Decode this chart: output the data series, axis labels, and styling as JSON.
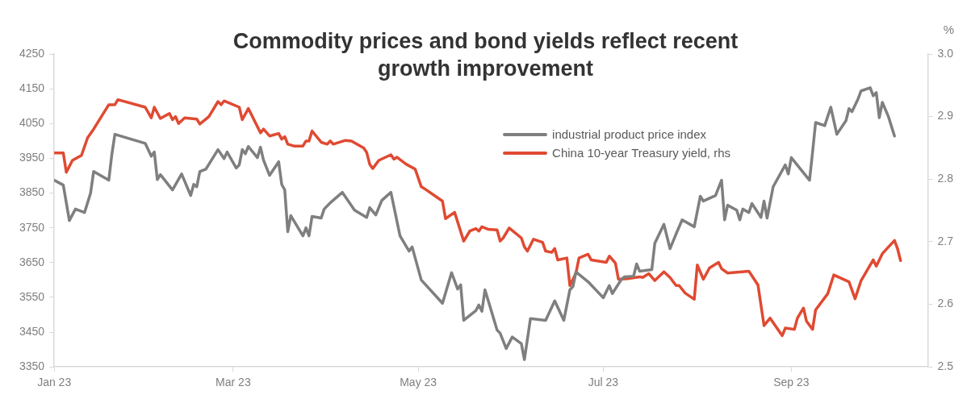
{
  "chart_data": {
    "type": "line",
    "title": "Commodity prices and bond yields reflect recent growth improvement",
    "y2label": "%",
    "xlim": [
      "2023-01-01",
      "2023-10-16"
    ],
    "xticks": [
      {
        "value": "2023-01-01",
        "label": "Jan 23"
      },
      {
        "value": "2023-03-01",
        "label": "Mar 23"
      },
      {
        "value": "2023-05-01",
        "label": "May 23"
      },
      {
        "value": "2023-07-01",
        "label": "Jul 23"
      },
      {
        "value": "2023-09-01",
        "label": "Sep 23"
      }
    ],
    "ylim": [
      3350,
      4250
    ],
    "yticks": [
      3350,
      3450,
      3550,
      3650,
      3750,
      3850,
      3950,
      4050,
      4150,
      4250
    ],
    "y2lim": [
      2.5,
      3.0
    ],
    "y2ticks": [
      {
        "value": 2.5,
        "label": "2.5"
      },
      {
        "value": 2.6,
        "label": "2.6"
      },
      {
        "value": 2.7,
        "label": "2.7"
      },
      {
        "value": 2.8,
        "label": "2.8"
      },
      {
        "value": 2.9,
        "label": "2.9"
      },
      {
        "value": 3.0,
        "label": "3.0"
      }
    ],
    "grid": false,
    "legend": "top right",
    "series": [
      {
        "name": "industrial product price index",
        "color": "#7f7f7f",
        "x": [
          "2023-01-01",
          "2023-01-04",
          "2023-01-06",
          "2023-01-08",
          "2023-01-11",
          "2023-01-13",
          "2023-01-14",
          "2023-01-19",
          "2023-01-20",
          "2023-01-21",
          "2023-01-31",
          "2023-02-02",
          "2023-02-03",
          "2023-02-04",
          "2023-02-05",
          "2023-02-09",
          "2023-02-12",
          "2023-02-15",
          "2023-02-16",
          "2023-02-17",
          "2023-02-18",
          "2023-02-20",
          "2023-02-24",
          "2023-02-26",
          "2023-02-27",
          "2023-03-02",
          "2023-03-03",
          "2023-03-04",
          "2023-03-05",
          "2023-03-06",
          "2023-03-09",
          "2023-03-10",
          "2023-03-11",
          "2023-03-13",
          "2023-03-16",
          "2023-03-17",
          "2023-03-18",
          "2023-03-19",
          "2023-03-20",
          "2023-03-24",
          "2023-03-25",
          "2023-03-26",
          "2023-03-27",
          "2023-03-30",
          "2023-03-31",
          "2023-04-02",
          "2023-04-06",
          "2023-04-10",
          "2023-04-14",
          "2023-04-15",
          "2023-04-17",
          "2023-04-19",
          "2023-04-22",
          "2023-04-25",
          "2023-04-28",
          "2023-04-29",
          "2023-05-02",
          "2023-05-09",
          "2023-05-12",
          "2023-05-14",
          "2023-05-15",
          "2023-05-16",
          "2023-05-20",
          "2023-05-21",
          "2023-05-22",
          "2023-05-23",
          "2023-05-27",
          "2023-05-28",
          "2023-05-30",
          "2023-06-01",
          "2023-06-04",
          "2023-06-05",
          "2023-06-07",
          "2023-06-12",
          "2023-06-15",
          "2023-06-18",
          "2023-06-20",
          "2023-06-21",
          "2023-06-22",
          "2023-06-26",
          "2023-07-01",
          "2023-07-03",
          "2023-07-04",
          "2023-07-07",
          "2023-07-08",
          "2023-07-11",
          "2023-07-12",
          "2023-07-13",
          "2023-07-17",
          "2023-07-18",
          "2023-07-21",
          "2023-07-23",
          "2023-07-25",
          "2023-07-27",
          "2023-07-31",
          "2023-08-02",
          "2023-08-03",
          "2023-08-07",
          "2023-08-09",
          "2023-08-10",
          "2023-08-11",
          "2023-08-14",
          "2023-08-15",
          "2023-08-16",
          "2023-08-18",
          "2023-08-19",
          "2023-08-22",
          "2023-08-23",
          "2023-08-24",
          "2023-08-26",
          "2023-08-30",
          "2023-08-31",
          "2023-09-01",
          "2023-09-07",
          "2023-09-08",
          "2023-09-09",
          "2023-09-12",
          "2023-09-14",
          "2023-09-16",
          "2023-09-19",
          "2023-09-20",
          "2023-09-21",
          "2023-09-23",
          "2023-09-24",
          "2023-09-27",
          "2023-09-28",
          "2023-09-29",
          "2023-09-30",
          "2023-10-01",
          "2023-10-03",
          "2023-10-05"
        ],
        "values": [
          3887,
          3873,
          3771,
          3804,
          3794,
          3850,
          3912,
          3887,
          3961,
          4019,
          3993,
          3956,
          3968,
          3889,
          3903,
          3859,
          3905,
          3843,
          3875,
          3868,
          3912,
          3919,
          3975,
          3949,
          3968,
          3922,
          3931,
          3975,
          3963,
          3984,
          3952,
          3982,
          3945,
          3901,
          3940,
          3875,
          3859,
          3739,
          3785,
          3727,
          3750,
          3727,
          3783,
          3778,
          3804,
          3822,
          3852,
          3801,
          3780,
          3808,
          3787,
          3829,
          3852,
          3727,
          3683,
          3695,
          3600,
          3533,
          3621,
          3574,
          3586,
          3484,
          3512,
          3528,
          3510,
          3572,
          3456,
          3447,
          3403,
          3436,
          3417,
          3371,
          3489,
          3484,
          3540,
          3484,
          3572,
          3581,
          3623,
          3595,
          3549,
          3584,
          3561,
          3602,
          3609,
          3611,
          3646,
          3625,
          3630,
          3706,
          3760,
          3690,
          3732,
          3773,
          3753,
          3841,
          3827,
          3843,
          3887,
          3773,
          3815,
          3801,
          3773,
          3804,
          3794,
          3820,
          3780,
          3827,
          3778,
          3868,
          3931,
          3905,
          3952,
          3887,
          3968,
          4053,
          4044,
          4097,
          4019,
          4058,
          4093,
          4084,
          4121,
          4144,
          4153,
          4130,
          4139,
          4067,
          4111,
          4070,
          4014
        ]
      },
      {
        "name": "China 10-year Treasury yield, rhs",
        "color": "#e04a32",
        "axis": "y2",
        "x": [
          "2023-01-01",
          "2023-01-04",
          "2023-01-05",
          "2023-01-07",
          "2023-01-10",
          "2023-01-12",
          "2023-01-14",
          "2023-01-19",
          "2023-01-21",
          "2023-01-22",
          "2023-01-31",
          "2023-02-02",
          "2023-02-03",
          "2023-02-05",
          "2023-02-08",
          "2023-02-09",
          "2023-02-10",
          "2023-02-11",
          "2023-02-13",
          "2023-02-17",
          "2023-02-18",
          "2023-02-21",
          "2023-02-24",
          "2023-02-25",
          "2023-02-26",
          "2023-03-03",
          "2023-03-04",
          "2023-03-06",
          "2023-03-10",
          "2023-03-11",
          "2023-03-13",
          "2023-03-16",
          "2023-03-17",
          "2023-03-18",
          "2023-03-19",
          "2023-03-21",
          "2023-03-24",
          "2023-03-25",
          "2023-03-26",
          "2023-03-27",
          "2023-03-30",
          "2023-04-01",
          "2023-04-02",
          "2023-04-03",
          "2023-04-07",
          "2023-04-09",
          "2023-04-13",
          "2023-04-14",
          "2023-04-15",
          "2023-04-16",
          "2023-04-18",
          "2023-04-22",
          "2023-04-23",
          "2023-04-24",
          "2023-04-27",
          "2023-04-30",
          "2023-05-02",
          "2023-05-03",
          "2023-05-09",
          "2023-05-10",
          "2023-05-13",
          "2023-05-16",
          "2023-05-18",
          "2023-05-20",
          "2023-05-21",
          "2023-05-22",
          "2023-05-24",
          "2023-05-27",
          "2023-05-28",
          "2023-05-29",
          "2023-05-31",
          "2023-06-04",
          "2023-06-05",
          "2023-06-06",
          "2023-06-08",
          "2023-06-11",
          "2023-06-12",
          "2023-06-14",
          "2023-06-15",
          "2023-06-16",
          "2023-06-19",
          "2023-06-20",
          "2023-06-22",
          "2023-06-23",
          "2023-06-26",
          "2023-06-27",
          "2023-07-02",
          "2023-07-03",
          "2023-07-05",
          "2023-07-06",
          "2023-07-09",
          "2023-07-13",
          "2023-07-14",
          "2023-07-16",
          "2023-07-18",
          "2023-07-21",
          "2023-07-23",
          "2023-07-25",
          "2023-07-26",
          "2023-07-28",
          "2023-07-31",
          "2023-08-01",
          "2023-08-03",
          "2023-08-05",
          "2023-08-08",
          "2023-08-09",
          "2023-08-11",
          "2023-08-18",
          "2023-08-21",
          "2023-08-23",
          "2023-08-25",
          "2023-08-29",
          "2023-08-30",
          "2023-09-02",
          "2023-09-03",
          "2023-09-05",
          "2023-09-06",
          "2023-09-08",
          "2023-09-09",
          "2023-09-13",
          "2023-09-15",
          "2023-09-20",
          "2023-09-22",
          "2023-09-24",
          "2023-09-28",
          "2023-09-29",
          "2023-10-01",
          "2023-10-05",
          "2023-10-06",
          "2023-10-07"
        ],
        "values": [
          2.842,
          2.842,
          2.811,
          2.83,
          2.838,
          2.866,
          2.88,
          2.919,
          2.919,
          2.927,
          2.915,
          2.898,
          2.915,
          2.897,
          2.905,
          2.895,
          2.9,
          2.889,
          2.898,
          2.896,
          2.888,
          2.9,
          2.924,
          2.919,
          2.925,
          2.915,
          2.895,
          2.913,
          2.874,
          2.88,
          2.869,
          2.873,
          2.864,
          2.868,
          2.856,
          2.853,
          2.853,
          2.861,
          2.861,
          2.877,
          2.859,
          2.856,
          2.861,
          2.856,
          2.862,
          2.861,
          2.85,
          2.843,
          2.824,
          2.817,
          2.83,
          2.839,
          2.832,
          2.835,
          2.824,
          2.816,
          2.788,
          2.785,
          2.765,
          2.737,
          2.747,
          2.701,
          2.717,
          2.721,
          2.717,
          2.724,
          2.72,
          2.719,
          2.701,
          2.706,
          2.722,
          2.706,
          2.692,
          2.685,
          2.704,
          2.699,
          2.685,
          2.683,
          2.689,
          2.671,
          2.674,
          2.63,
          2.65,
          2.674,
          2.68,
          2.671,
          2.667,
          2.677,
          2.666,
          2.64,
          2.641,
          2.644,
          2.643,
          2.649,
          2.638,
          2.652,
          2.643,
          2.63,
          2.63,
          2.618,
          2.608,
          2.663,
          2.64,
          2.658,
          2.667,
          2.657,
          2.65,
          2.653,
          2.631,
          2.566,
          2.578,
          2.55,
          2.562,
          2.56,
          2.578,
          2.594,
          2.573,
          2.56,
          2.591,
          2.617,
          2.647,
          2.636,
          2.609,
          2.638,
          2.671,
          2.661,
          2.681,
          2.702,
          2.689,
          2.67
        ]
      }
    ]
  }
}
